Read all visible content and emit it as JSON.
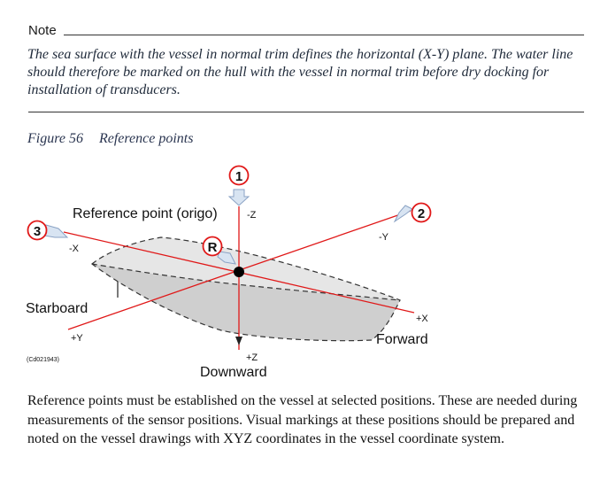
{
  "note": {
    "label": "Note",
    "text": "The sea surface with the vessel in normal trim defines the horizontal (X-Y) plane. The water line should therefore be marked on the hull with the vessel in normal trim before dry docking for installation of transducers."
  },
  "figure": {
    "number": "Figure 56",
    "title": "Reference points",
    "labels": {
      "reference_point": "Reference point (origo)",
      "minus_z": "-Z",
      "plus_z": "+Z",
      "minus_x": "-X",
      "plus_x": "+X",
      "minus_y": "-Y",
      "plus_y": "+Y",
      "starboard": "Starboard",
      "forward": "Forward",
      "downward": "Downward",
      "doc_id": "(Cd021943)"
    },
    "markers": {
      "m1": "1",
      "m2": "2",
      "m3": "3",
      "mr": "R"
    },
    "colors": {
      "axis": "#e01818",
      "marker_ring": "#e01818",
      "marker_fill": "#d8e4f2",
      "hull_top": "#e6e6e6",
      "hull_side": "#cfcfcf"
    }
  },
  "body_text": "Reference points must be established on the vessel at selected positions. These are needed during measurements of the sensor positions. Visual markings at these positions should be prepared and noted on the vessel drawings with XYZ coordinates in the vessel coordinate system."
}
